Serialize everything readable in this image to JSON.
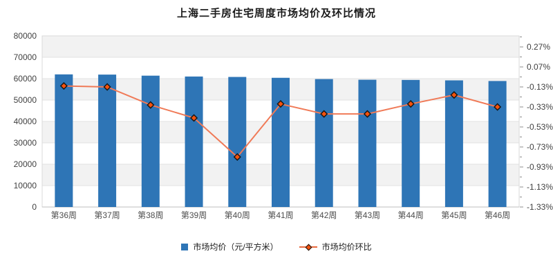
{
  "title": "上海二手房住宅周度市场均价及环比情况",
  "chart_data": {
    "type": "bar+line-combo",
    "title": "上海二手房住宅周度市场均价及环比情况",
    "categories": [
      "第36周",
      "第37周",
      "第38周",
      "第39周",
      "第40周",
      "第41周",
      "第42周",
      "第43周",
      "第44周",
      "第45周",
      "第46周"
    ],
    "series": [
      {
        "name": "市场均价（元/平方米）",
        "type": "bar",
        "axis": "left",
        "values": [
          62000,
          61900,
          61400,
          61000,
          60800,
          60400,
          59800,
          59500,
          59400,
          59200,
          58900
        ]
      },
      {
        "name": "市场均价环比",
        "type": "line",
        "axis": "right",
        "values": [
          -0.12,
          -0.13,
          -0.31,
          -0.44,
          -0.83,
          -0.3,
          -0.4,
          -0.4,
          -0.3,
          -0.21,
          -0.33
        ],
        "unit": "%"
      }
    ],
    "left_axis": {
      "min": 0,
      "max": 80000,
      "step": 10000,
      "tick_labels": [
        "80000",
        "70000",
        "60000",
        "50000",
        "40000",
        "30000",
        "20000",
        "10000",
        "0"
      ]
    },
    "right_axis": {
      "bottom_value": -1.33,
      "step": 0.2,
      "tick_labels": [
        "0.27%",
        "0.07%",
        "-0.13%",
        "-0.33%",
        "-0.53%",
        "-0.73%",
        "-0.93%",
        "-1.13%",
        "-1.33%"
      ]
    },
    "legend_position": "bottom",
    "grid": "horizontal-bands"
  },
  "colors": {
    "bar": "#2e75b6",
    "line": "#f07a57",
    "marker_fill": "#f4520d",
    "marker_stroke": "#151515",
    "band": "#f2f2f2",
    "gridline": "#e2e2e2",
    "border": "#d9d9d9",
    "baseline": "#bfbfbf",
    "tick": "#8c8c8c",
    "axis_text": "#404040",
    "x_text": "#4d4d4d"
  }
}
